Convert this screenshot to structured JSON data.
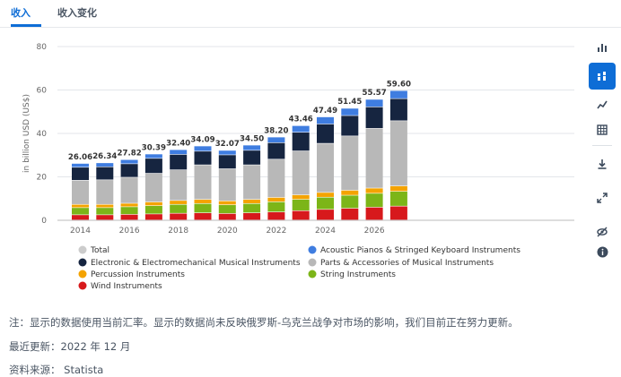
{
  "tabs": [
    {
      "label": "收入",
      "active": true
    },
    {
      "label": "收入变化",
      "active": false
    }
  ],
  "sidebar": {
    "icons": [
      "bar-chart-icon",
      "stacked-bar-icon",
      "line-chart-icon",
      "table-icon",
      "download-icon",
      "fullscreen-icon",
      "hide-icon",
      "info-icon"
    ],
    "active_index": 1
  },
  "chart_data": {
    "type": "bar",
    "stacked": true,
    "ylabel": "in billion USD (US$)",
    "ylim": [
      0,
      80
    ],
    "yticks": [
      0,
      20,
      40,
      60,
      80
    ],
    "xtick_labels": [
      "2014",
      "2016",
      "2018",
      "2020",
      "2022",
      "2024",
      "2026"
    ],
    "categories": [
      "2014",
      "2015",
      "2016",
      "2017",
      "2018",
      "2019",
      "2020",
      "2021",
      "2022",
      "2023",
      "2024",
      "2025",
      "2026",
      "2027"
    ],
    "totals": [
      26.06,
      26.34,
      27.82,
      30.39,
      32.4,
      34.09,
      32.07,
      34.5,
      38.2,
      43.46,
      47.49,
      51.45,
      55.57,
      59.6
    ],
    "series": [
      {
        "name": "Wind Instruments",
        "color": "#d7191c",
        "values": [
          2.4,
          2.4,
          2.6,
          2.8,
          3.1,
          3.3,
          3.0,
          3.3,
          3.7,
          4.3,
          4.9,
          5.4,
          5.9,
          6.4
        ]
      },
      {
        "name": "String Instruments",
        "color": "#7cb518",
        "values": [
          3.3,
          3.3,
          3.5,
          3.8,
          4.1,
          4.3,
          4.0,
          4.3,
          4.7,
          5.2,
          5.6,
          6.0,
          6.4,
          6.8
        ]
      },
      {
        "name": "Percussion Instruments",
        "color": "#f4a300",
        "values": [
          1.5,
          1.5,
          1.6,
          1.7,
          1.8,
          1.9,
          1.8,
          1.9,
          2.0,
          2.1,
          2.2,
          2.3,
          2.4,
          2.5
        ]
      },
      {
        "name": "Parts & Accessories of Musical Instruments",
        "color": "#b8b8b8",
        "values": [
          11.1,
          11.3,
          12.0,
          13.2,
          14.1,
          15.9,
          14.8,
          15.9,
          17.6,
          20.2,
          22.6,
          25.0,
          27.5,
          30.0
        ]
      },
      {
        "name": "Electronic & Electromechanical Musical Instruments",
        "color": "#162540",
        "values": [
          6.0,
          6.0,
          6.2,
          6.9,
          7.1,
          6.3,
          6.4,
          6.7,
          7.6,
          8.6,
          8.9,
          9.4,
          9.9,
          10.2
        ]
      },
      {
        "name": "Acoustic Pianos & Stringed Keyboard Instruments",
        "color": "#3f7de0",
        "values": [
          1.76,
          1.84,
          1.92,
          1.99,
          2.2,
          2.39,
          2.07,
          2.4,
          2.6,
          3.06,
          3.29,
          3.35,
          3.47,
          3.7
        ]
      }
    ],
    "legend": [
      {
        "name": "Total",
        "color": "#cccccc",
        "muted": true
      },
      {
        "name": "Acoustic Pianos & Stringed Keyboard Instruments",
        "color": "#3f7de0"
      },
      {
        "name": "Electronic & Electromechanical Musical Instruments",
        "color": "#162540"
      },
      {
        "name": "Parts & Accessories of Musical Instruments",
        "color": "#b8b8b8"
      },
      {
        "name": "Percussion Instruments",
        "color": "#f4a300"
      },
      {
        "name": "String Instruments",
        "color": "#7cb518"
      },
      {
        "name": "Wind Instruments",
        "color": "#d7191c"
      }
    ]
  },
  "notes": {
    "note": "注：显示的数据使用当前汇率。显示的数据尚未反映俄罗斯-乌克兰战争对市场的影响，我们目前正在努力更新。",
    "updated": "最近更新：2022 年 12 月",
    "source": "资料来源： Statista"
  }
}
